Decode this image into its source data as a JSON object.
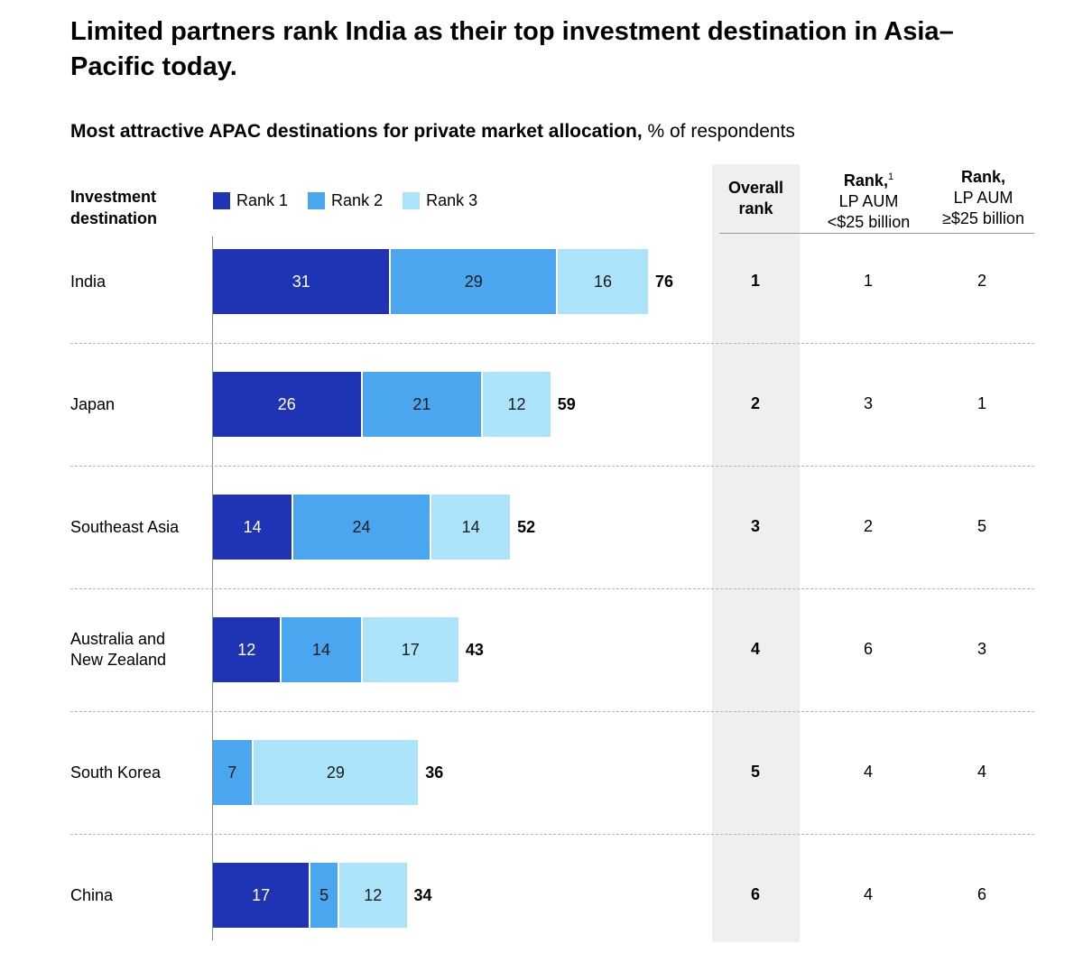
{
  "title": "Limited partners rank India as their top investment destination in Asia–Pacific today.",
  "subtitle_bold": "Most attractive APAC destinations for private market allocation,",
  "subtitle_rest": " % of respondents",
  "headers": {
    "destination_line1": "Investment",
    "destination_line2": "destination",
    "overall_line1": "Overall",
    "overall_line2": "rank",
    "small_line1": "Rank,",
    "small_sup": "1",
    "small_line2": "LP AUM",
    "small_line3": "<$25 billion",
    "large_line1": "Rank,",
    "large_line2": "LP AUM",
    "large_line3": "≥$25 billion"
  },
  "colors": {
    "rank1": "#1f34b4",
    "rank2": "#4aa6ee",
    "rank3": "#abe3fa"
  },
  "chart_data": {
    "type": "bar",
    "orientation": "horizontal",
    "stacked": true,
    "title": "Most attractive APAC destinations for private market allocation, % of respondents",
    "categories": [
      "India",
      "Japan",
      "Southeast Asia",
      "Australia and New Zealand",
      "South Korea",
      "China"
    ],
    "category_lines": [
      [
        "India"
      ],
      [
        "Japan"
      ],
      [
        "Southeast Asia"
      ],
      [
        "Australia and",
        "New Zealand"
      ],
      [
        "South Korea"
      ],
      [
        "China"
      ]
    ],
    "series": [
      {
        "name": "Rank 1",
        "values": [
          31,
          26,
          14,
          12,
          0,
          17
        ]
      },
      {
        "name": "Rank 2",
        "values": [
          29,
          21,
          24,
          14,
          7,
          5
        ]
      },
      {
        "name": "Rank 3",
        "values": [
          16,
          12,
          14,
          17,
          29,
          12
        ]
      }
    ],
    "totals": [
      76,
      59,
      52,
      43,
      36,
      34
    ],
    "legend": [
      "Rank 1",
      "Rank 2",
      "Rank 3"
    ],
    "legend_position": "top",
    "xlim": [
      0,
      76
    ]
  },
  "ranks": {
    "overall": [
      "1",
      "2",
      "3",
      "4",
      "5",
      "6"
    ],
    "small_lp": [
      "1",
      "3",
      "2",
      "6",
      "4",
      "4"
    ],
    "large_lp": [
      "2",
      "1",
      "5",
      "3",
      "4",
      "6"
    ]
  }
}
